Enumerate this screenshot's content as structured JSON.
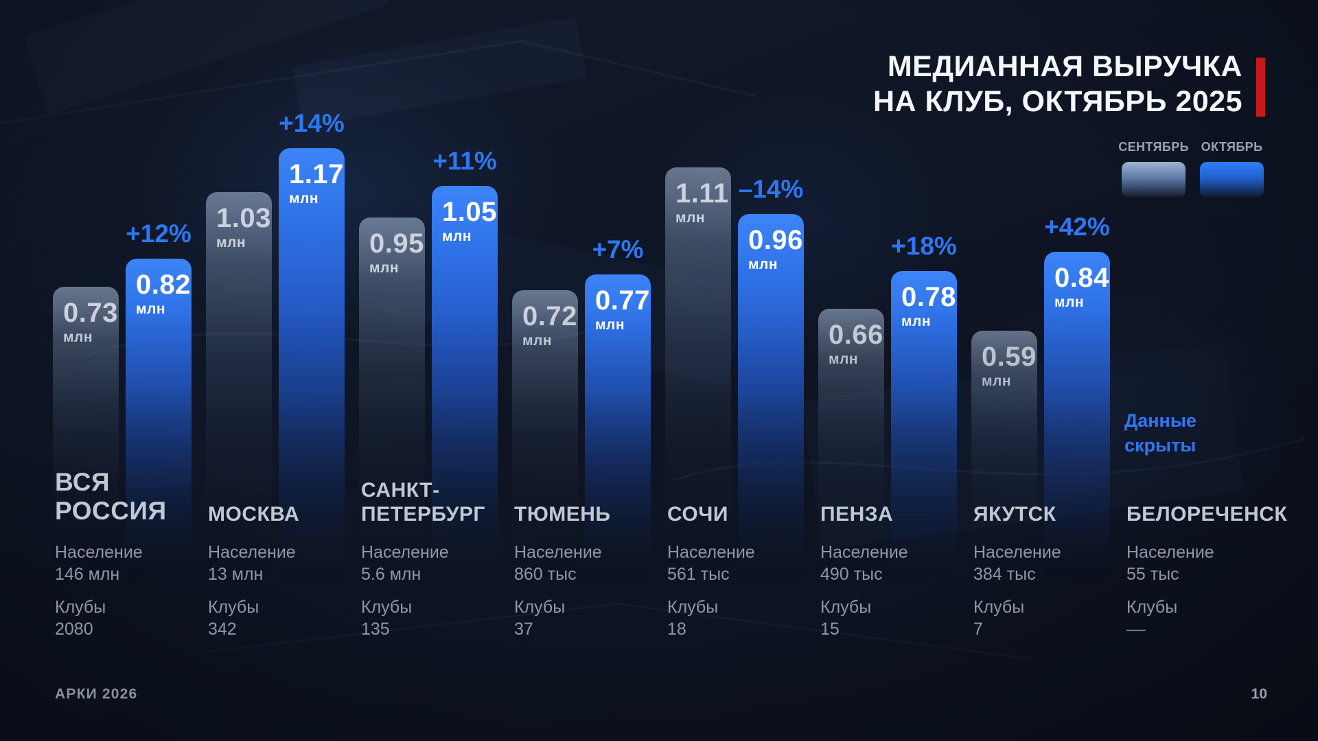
{
  "slide": {
    "title_line1": "МЕДИАННАЯ ВЫРУЧКА",
    "title_line2": "НА КЛУБ, ОКТЯБРЬ 2025",
    "footer_left": "АРКИ 2026",
    "page_number": "10"
  },
  "colors": {
    "accent_blue": "#2e77f2",
    "accent_red": "#c8191d",
    "september_swatch_top": "#9db4d2",
    "october_swatch_top": "#2f7df8"
  },
  "legend": {
    "september_label": "СЕНТЯБРЬ",
    "october_label": "ОКТЯБРЬ"
  },
  "chart_data": {
    "type": "bar",
    "title": "МЕДИАННАЯ ВЫРУЧКА НА КЛУБ, ОКТЯБРЬ 2025",
    "unit": "млн",
    "series": [
      "СЕНТЯБРЬ",
      "ОКТЯБРЬ"
    ],
    "legend_position": "top-right",
    "grid": false,
    "ylim": [
      0,
      1.3
    ],
    "population_label": "Население",
    "clubs_label": "Клубы",
    "groups": [
      {
        "city": "ВСЯ РОССИЯ",
        "city_lines": [
          "ВСЯ",
          "РОССИЯ"
        ],
        "big_name": true,
        "september": 0.73,
        "october": 0.82,
        "change": "+12%",
        "population": "146 млн",
        "clubs": "2080"
      },
      {
        "city": "МОСКВА",
        "city_lines": [
          "МОСКВА"
        ],
        "big_name": false,
        "september": 1.03,
        "october": 1.17,
        "change": "+14%",
        "population": "13 млн",
        "clubs": "342"
      },
      {
        "city": "САНКТ-ПЕТЕРБУРГ",
        "city_lines": [
          "САНКТ-",
          "ПЕТЕРБУРГ"
        ],
        "big_name": false,
        "september": 0.95,
        "october": 1.05,
        "change": "+11%",
        "population": "5.6 млн",
        "clubs": "135"
      },
      {
        "city": "ТЮМЕНЬ",
        "city_lines": [
          "ТЮМЕНЬ"
        ],
        "big_name": false,
        "september": 0.72,
        "october": 0.77,
        "change": "+7%",
        "population": "860 тыс",
        "clubs": "37"
      },
      {
        "city": "СОЧИ",
        "city_lines": [
          "СОЧИ"
        ],
        "big_name": false,
        "september": 1.11,
        "october": 0.96,
        "change": "–14%",
        "population": "561 тыс",
        "clubs": "18"
      },
      {
        "city": "ПЕНЗА",
        "city_lines": [
          "ПЕНЗА"
        ],
        "big_name": false,
        "september": 0.66,
        "october": 0.78,
        "change": "+18%",
        "population": "490 тыс",
        "clubs": "15"
      },
      {
        "city": "ЯКУТСК",
        "city_lines": [
          "ЯКУТСК"
        ],
        "big_name": false,
        "september": 0.59,
        "october": 0.84,
        "change": "+42%",
        "population": "384 тыс",
        "clubs": "7"
      },
      {
        "city": "БЕЛОРЕЧЕНСК",
        "city_lines": [
          "БЕЛОРЕЧЕНСК"
        ],
        "big_name": false,
        "september": null,
        "october": null,
        "change": null,
        "population": "55 тыс",
        "clubs": "––",
        "note": "Данные скрыты"
      }
    ]
  }
}
